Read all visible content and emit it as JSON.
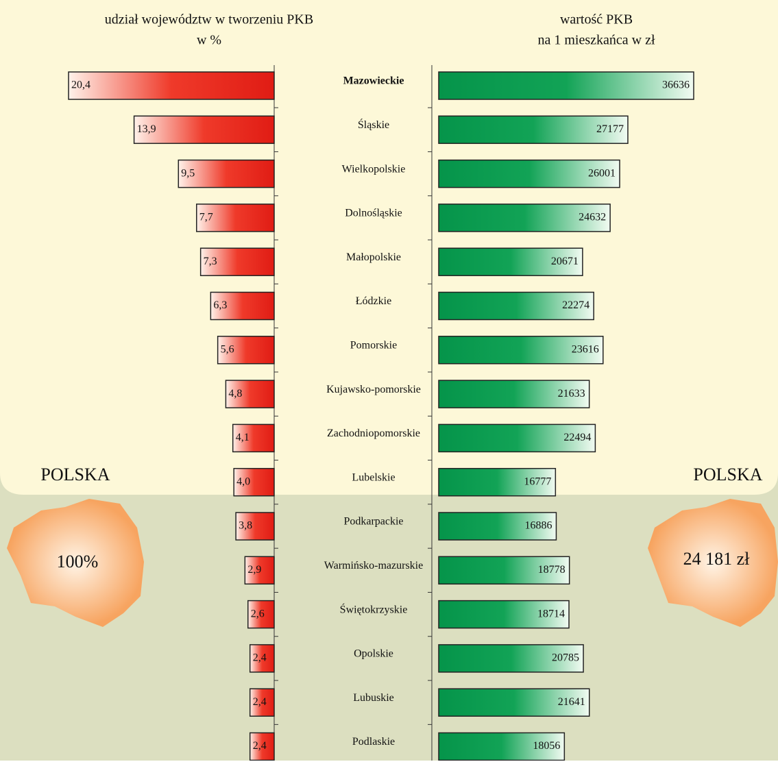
{
  "chart_data": {
    "type": "bar",
    "left_title": [
      "udział województw w tworzeniu PKB",
      "w %"
    ],
    "right_title": [
      "wartość PKB",
      "na 1 mieszkańca w zł"
    ],
    "categories": [
      "Mazowieckie",
      "Śląskie",
      "Wielkopolskie",
      "Dolnośląskie",
      "Małopolskie",
      "Łódzkie",
      "Pomorskie",
      "Kujawsko-pomorskie",
      "Zachodniopomorskie",
      "Lubelskie",
      "Podkarpackie",
      "Warmińsko-mazurskie",
      "Świętokrzyskie",
      "Opolskie",
      "Lubuskie",
      "Podlaskie"
    ],
    "series": [
      {
        "name": "udział województw w tworzeniu PKB",
        "color": "#e8231c",
        "values": [
          20.4,
          13.9,
          9.5,
          7.7,
          7.3,
          6.3,
          5.6,
          4.8,
          4.1,
          4.0,
          3.8,
          2.9,
          2.6,
          2.4,
          2.4,
          2.4
        ],
        "value_labels": [
          "20,4",
          "13,9",
          "9,5",
          "7,7",
          "7,3",
          "6,3",
          "5,6",
          "4,8",
          "4,1",
          "4,0",
          "3,8",
          "2,9",
          "2,6",
          "2,4",
          "2,4",
          "2,4"
        ]
      },
      {
        "name": "wartość PKB na 1 mieszkańca w zł",
        "color": "#0a9a4a",
        "values": [
          36636,
          27177,
          26001,
          24632,
          20671,
          22274,
          23616,
          21633,
          22494,
          16777,
          16886,
          18778,
          18714,
          20785,
          21641,
          18056
        ]
      }
    ],
    "annotations": {
      "left_label": "POLSKA",
      "left_value": "100%",
      "right_label": "POLSKA",
      "right_value": "24 181 zł"
    }
  }
}
